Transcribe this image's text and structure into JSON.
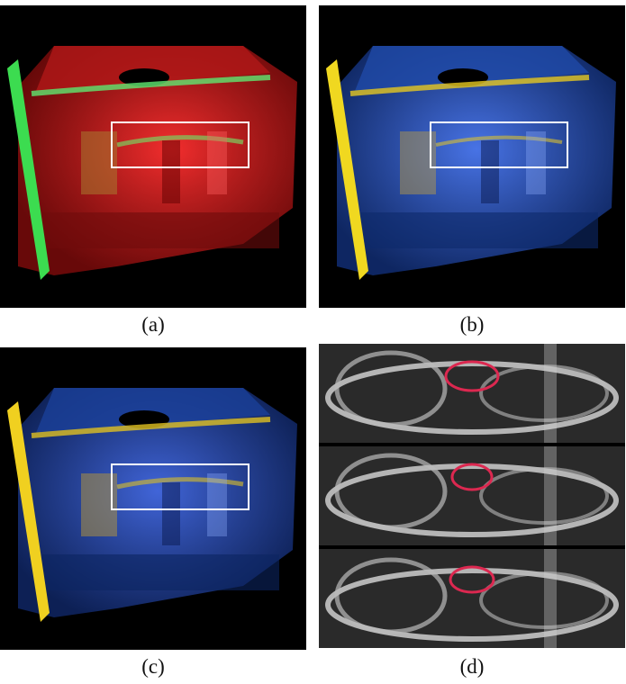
{
  "captions": {
    "a": "(a)",
    "b": "(b)",
    "c": "(c)",
    "d": "(d)"
  },
  "colors": {
    "background": "#000000",
    "panel_a_volume": "#d21e1e",
    "panel_a_feature": "#3cdc50",
    "panel_bc_volume": "#2d5adc",
    "panel_bc_feature": "#e6d21e",
    "highlight_box": "#ffffff",
    "ellipse_marker": "#dc2850"
  }
}
